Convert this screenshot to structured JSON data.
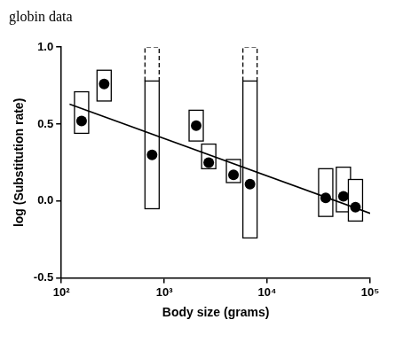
{
  "chart_data": {
    "type": "scatter",
    "title": "globin data",
    "xlabel": "Body size (grams)",
    "ylabel": "log (Substitution rate)",
    "log": "x",
    "grid": false,
    "xlim": [
      100,
      100000
    ],
    "xticks": [
      {
        "value": 100,
        "label": "10²"
      },
      {
        "value": 1000,
        "label": "10³"
      },
      {
        "value": 10000,
        "label": "10⁴"
      },
      {
        "value": 100000,
        "label": "10⁵"
      }
    ],
    "ylim": [
      -0.5,
      1.0
    ],
    "yticks": [
      {
        "value": -0.5,
        "label": "-0.5"
      },
      {
        "value": 0,
        "label": "0.0"
      },
      {
        "value": 0.5,
        "label": "0.5"
      },
      {
        "value": 1.0,
        "label": "1.0"
      }
    ],
    "series": [
      {
        "type": "scatter",
        "color": "#000000",
        "marker": "circle",
        "x": [
          157,
          260,
          760,
          2040,
          2700,
          4700,
          6800,
          37000,
          55000,
          72000
        ],
        "values": [
          0.52,
          0.76,
          0.3,
          0.49,
          0.25,
          0.17,
          0.11,
          0.02,
          0.03,
          -0.04
        ],
        "error_low": [
          0.44,
          0.65,
          -0.05,
          0.39,
          0.21,
          0.12,
          -0.24,
          -0.1,
          -0.07,
          -0.13
        ],
        "error_high": [
          0.71,
          0.85,
          0.78,
          0.59,
          0.37,
          0.27,
          0.78,
          0.21,
          0.22,
          0.14
        ],
        "dashed_high": [
          null,
          null,
          1.0,
          null,
          null,
          null,
          1.0,
          null,
          null,
          null
        ]
      },
      {
        "type": "line",
        "color": "#000000",
        "line_style": "solid",
        "x": [
          120,
          100000
        ],
        "values": [
          0.63,
          -0.08
        ]
      }
    ]
  }
}
